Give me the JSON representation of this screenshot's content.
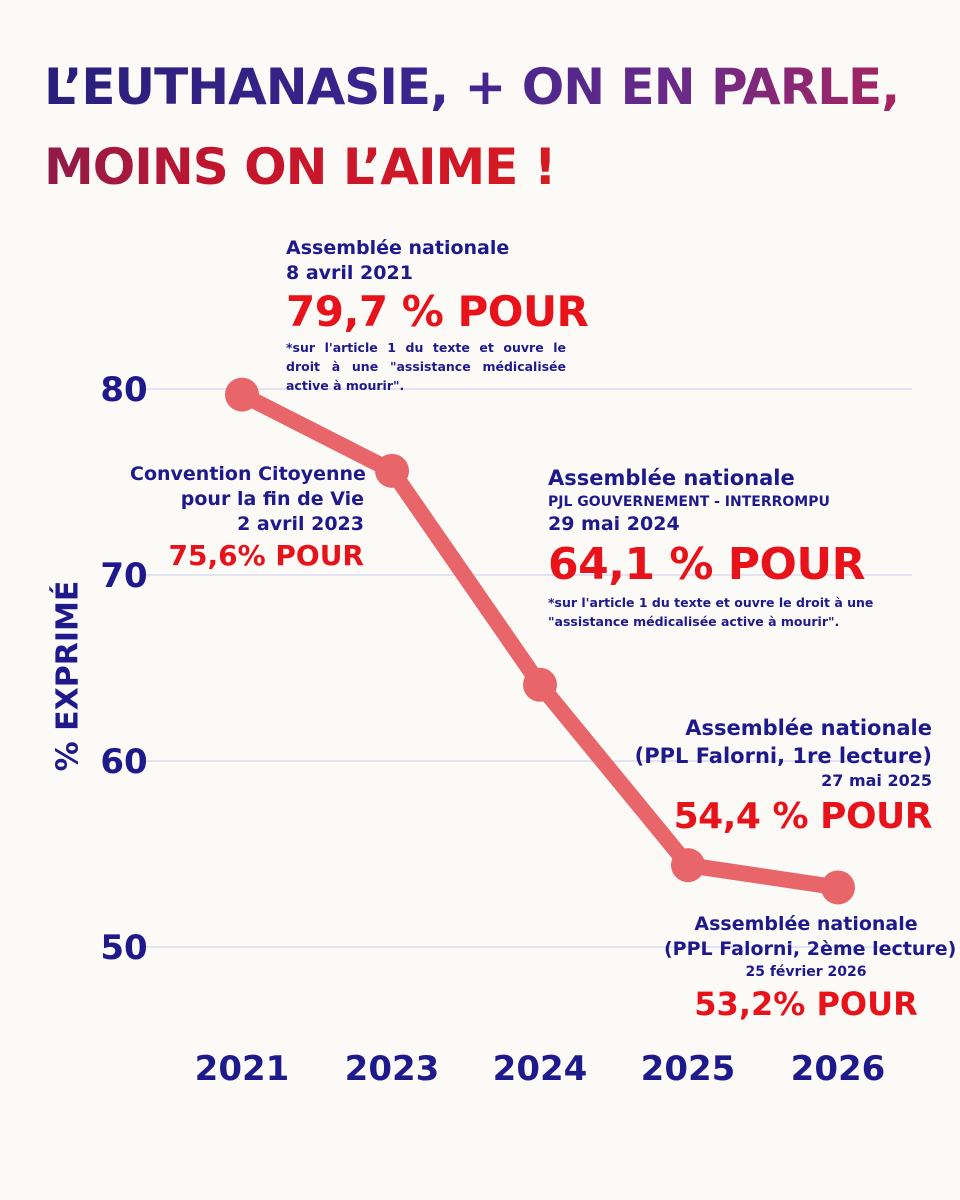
{
  "title": {
    "line1": "L’EUTHANASIE, + ON EN PARLE,",
    "line2": "MOINS ON L’AIME !"
  },
  "colors": {
    "navy": "#1f1a8c",
    "red": "#e8121a",
    "line": "#e8666a",
    "grid": "#c9c9ee"
  },
  "chart_data": {
    "type": "line",
    "title": "L’EUTHANASIE, + ON EN PARLE, MOINS ON L’AIME !",
    "xlabel": "",
    "ylabel": "% EXPRIMÉ",
    "categories": [
      "2021",
      "2023",
      "2024",
      "2025",
      "2026"
    ],
    "series": [
      {
        "name": "% POUR",
        "values": [
          79.7,
          75.6,
          64.1,
          54.4,
          53.2
        ]
      }
    ],
    "yticks": [
      50,
      60,
      70,
      80
    ],
    "ylim": [
      45,
      85
    ],
    "grid": true
  },
  "annotations": {
    "a2021": {
      "line1": "Assemblée nationale",
      "line2": "8 avril 2021",
      "value": "79,7 % POUR",
      "note": "*sur l'article 1 du texte et ouvre le droit à une \"assistance médicalisée active à mourir\"."
    },
    "a2023": {
      "line1": "Convention Citoyenne",
      "line2": "pour la fin de Vie",
      "line3": "2 avril 2023",
      "value": "75,6% POUR"
    },
    "a2024": {
      "line1": "Assemblée nationale",
      "line2": "PJL GOUVERNEMENT - INTERROMPU",
      "line3": "29 mai 2024",
      "value": "64,1 % POUR",
      "note": "*sur l'article 1 du texte et ouvre le droit à une \"assistance médicalisée active à mourir\"."
    },
    "a2025": {
      "line1": "Assemblée nationale",
      "line2": "(PPL Falorni, 1re lecture)",
      "line3": "27 mai 2025",
      "value": "54,4 % POUR"
    },
    "a2026": {
      "line1": "Assemblée nationale",
      "line2": "(PPL Falorni, 2ème lecture)",
      "line3": "25 février 2026",
      "value": "53,2% POUR"
    }
  }
}
